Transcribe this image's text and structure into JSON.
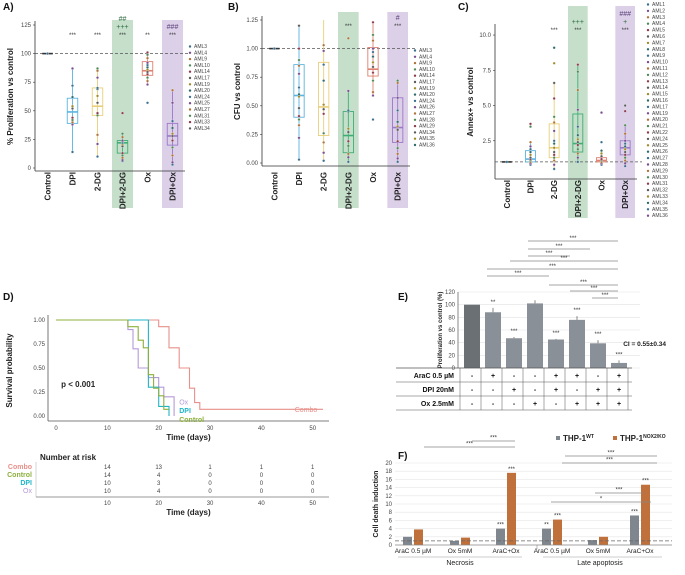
{
  "colors": {
    "green_band": "#c6dfcb",
    "purple_band": "#dcd0e8",
    "dpi": "#5ab4e0",
    "dg": "#e8cf7a",
    "dpi2dg": "#3fae74",
    "ox": "#e08070",
    "dpiox": "#9b78c8",
    "control": "#333333",
    "combo": "#e8908a",
    "km_control": "#8cb03c",
    "km_dpi": "#1fb5c8",
    "km_ox": "#b59ad8",
    "bar_dark": "#6b7075",
    "bar_gray": "#8a9097",
    "wt": "#7f868d",
    "ko": "#c0703a"
  },
  "chart_data": [
    {
      "id": "A",
      "panel_label": "A)",
      "type": "box",
      "ylabel": "% Proliferation vs control",
      "ylim": [
        0,
        125
      ],
      "yticks": [
        0,
        25,
        50,
        75,
        100,
        125
      ],
      "reference_line": 100,
      "categories": [
        "Control",
        "DPI",
        "2-DG",
        "DPI+2-DG",
        "Ox",
        "DPI+Ox"
      ],
      "highlight": {
        "DPI+2-DG": "green",
        "DPI+Ox": "purple"
      },
      "boxes": [
        {
          "q1": 100,
          "median": 100,
          "q3": 100,
          "min": 100,
          "max": 100
        },
        {
          "q1": 39,
          "median": 49,
          "q3": 61,
          "min": 14,
          "max": 87
        },
        {
          "q1": 46,
          "median": 54,
          "q3": 70,
          "min": 10,
          "max": 87
        },
        {
          "q1": 13,
          "median": 22,
          "q3": 24,
          "min": 6,
          "max": 30
        },
        {
          "q1": 81,
          "median": 85,
          "q3": 93,
          "min": 73,
          "max": 101
        },
        {
          "q1": 20,
          "median": 28,
          "q3": 39,
          "min": 3,
          "max": 68
        }
      ],
      "points": [
        [
          100
        ],
        [
          14,
          38,
          40,
          42,
          44,
          52,
          54,
          62,
          72,
          87
        ],
        [
          10,
          21,
          29,
          46,
          48,
          57,
          63,
          69,
          70,
          79,
          85,
          87
        ],
        [
          6,
          7,
          9,
          11,
          13,
          19,
          21,
          22,
          23,
          24,
          27,
          30,
          48
        ],
        [
          57,
          73,
          76,
          79,
          82,
          84,
          86,
          88,
          90,
          92,
          96,
          99,
          101
        ],
        [
          3,
          5,
          11,
          18,
          24,
          28,
          30,
          35,
          41,
          57,
          68
        ]
      ],
      "significance": [
        {
          "category": "DPI",
          "marks": [
            "***"
          ]
        },
        {
          "category": "2-DG",
          "marks": [
            "***"
          ]
        },
        {
          "category": "DPI+2-DG",
          "marks": [
            "##",
            "+++",
            "***"
          ]
        },
        {
          "category": "Ox",
          "marks": [
            "**"
          ]
        },
        {
          "category": "DPI+Ox",
          "marks": [
            "###",
            "***"
          ]
        }
      ],
      "legend": [
        "AML3",
        "AML4",
        "AML9",
        "AML10",
        "AML14",
        "AML17",
        "AML19",
        "AML20",
        "AML24",
        "AML25",
        "AML27",
        "AML31",
        "AML33",
        "AML34"
      ]
    },
    {
      "id": "B",
      "panel_label": "B)",
      "type": "box",
      "ylabel": "CFU vs control",
      "ylim": [
        0,
        1.25
      ],
      "yticks": [
        "0.00",
        "0.25",
        "0.50",
        "0.75",
        "1.00",
        "1.25"
      ],
      "reference_line": 1.0,
      "categories": [
        "Control",
        "DPI",
        "2-DG",
        "DPI+2-DG",
        "Ox",
        "DPI+Ox"
      ],
      "highlight": {
        "DPI+2-DG": "green",
        "DPI+Ox": "purple"
      },
      "boxes": [
        {
          "q1": 1.0,
          "median": 1.0,
          "q3": 1.0,
          "min": 1.0,
          "max": 1.0
        },
        {
          "q1": 0.4,
          "median": 0.59,
          "q3": 0.86,
          "min": 0.03,
          "max": 1.2
        },
        {
          "q1": 0.24,
          "median": 0.49,
          "q3": 0.88,
          "min": 0.02,
          "max": 1.25
        },
        {
          "q1": 0.09,
          "median": 0.24,
          "q3": 0.45,
          "min": 0.01,
          "max": 0.63
        },
        {
          "q1": 0.76,
          "median": 0.82,
          "q3": 1.01,
          "min": 0.59,
          "max": 1.23
        },
        {
          "q1": 0.18,
          "median": 0.31,
          "q3": 0.57,
          "min": 0.01,
          "max": 0.72
        }
      ],
      "points": [
        [
          1.0
        ],
        [
          0.03,
          0.22,
          0.33,
          0.38,
          0.41,
          0.48,
          0.58,
          0.6,
          0.66,
          0.78,
          0.85,
          0.9,
          1.0,
          1.2
        ],
        [
          0.02,
          0.09,
          0.18,
          0.26,
          0.43,
          0.47,
          0.51,
          0.72,
          0.86,
          0.98,
          1.03
        ],
        [
          0.01,
          0.05,
          0.08,
          0.15,
          0.19,
          0.27,
          0.3,
          0.45,
          0.46,
          0.63,
          1.09
        ],
        [
          0.38,
          0.59,
          0.62,
          0.72,
          0.79,
          0.84,
          0.88,
          0.93,
          0.97,
          1.0,
          1.07,
          1.12,
          1.23
        ],
        [
          0.01,
          0.04,
          0.08,
          0.13,
          0.19,
          0.29,
          0.32,
          0.36,
          0.46,
          0.57,
          0.7,
          0.72
        ]
      ],
      "significance": [
        {
          "category": "DPI+2-DG",
          "marks": [
            "***"
          ]
        },
        {
          "category": "DPI+Ox",
          "marks": [
            "#",
            "***"
          ]
        }
      ],
      "legend": [
        "AML3",
        "AML4",
        "AML9",
        "AML10",
        "AML14",
        "AML17",
        "AML19",
        "AML20",
        "AML24",
        "AML26",
        "AML27",
        "AML28",
        "AML29",
        "AML34",
        "AML35",
        "AML36"
      ]
    },
    {
      "id": "C",
      "panel_label": "C)",
      "type": "box",
      "ylabel": "Annex+ vs control",
      "ylim": [
        0,
        10.5
      ],
      "yticks": [
        "2.5",
        "5.0",
        "7.5",
        "10.0"
      ],
      "reference_line": 1.0,
      "categories": [
        "Control",
        "DPI",
        "2-DG",
        "DPI+2-DG",
        "Ox",
        "DPI+Ox"
      ],
      "highlight": {
        "DPI+2-DG": "green",
        "DPI+Ox": "purple"
      },
      "boxes": [
        {
          "q1": 1.0,
          "median": 1.0,
          "q3": 1.0,
          "min": 1.0,
          "max": 1.0
        },
        {
          "q1": 1.0,
          "median": 1.2,
          "q3": 1.8,
          "min": 0.8,
          "max": 2.4
        },
        {
          "q1": 1.3,
          "median": 2.0,
          "q3": 3.7,
          "min": 0.5,
          "max": 6.6
        },
        {
          "q1": 1.7,
          "median": 2.3,
          "q3": 4.4,
          "min": 1.0,
          "max": 7.9
        },
        {
          "q1": 1.0,
          "median": 1.1,
          "q3": 1.3,
          "min": 0.8,
          "max": 1.9
        },
        {
          "q1": 1.5,
          "median": 2.0,
          "q3": 2.5,
          "min": 0.7,
          "max": 3.6
        }
      ],
      "points": [
        [
          1.0
        ],
        [
          0.8,
          0.9,
          1.0,
          1.1,
          1.2,
          1.3,
          1.5,
          1.7,
          1.9,
          2.1,
          2.4,
          3.5,
          3.7
        ],
        [
          0.5,
          0.8,
          1.1,
          1.3,
          1.5,
          1.7,
          2.0,
          2.3,
          2.5,
          3.2,
          3.8,
          4.2,
          5.5,
          6.6,
          8.0,
          9.1
        ],
        [
          1.0,
          1.3,
          1.6,
          1.9,
          2.2,
          2.4,
          2.6,
          2.9,
          3.5,
          4.7,
          6.1,
          7.4,
          7.9
        ],
        [
          0.8,
          0.9,
          1.0,
          1.1,
          1.2,
          1.4,
          1.6,
          1.8,
          2.4,
          4.5
        ],
        [
          0.7,
          0.9,
          1.1,
          1.3,
          1.5,
          1.7,
          1.9,
          2.1,
          2.3,
          2.5,
          3.0,
          3.6,
          4.6,
          5.0
        ]
      ],
      "significance": [
        {
          "category": "2-DG",
          "marks": [
            "***"
          ]
        },
        {
          "category": "DPI+2-DG",
          "marks": [
            "+++",
            "***"
          ]
        },
        {
          "category": "DPI+Ox",
          "marks": [
            "###",
            "+",
            "***"
          ]
        }
      ],
      "legend": [
        "AML1",
        "AML2",
        "AML3",
        "AML4",
        "AML5",
        "AML6",
        "AML7",
        "AML8",
        "AML9",
        "AML10",
        "AML11",
        "AML12",
        "AML13",
        "AML14",
        "AML15",
        "AML16",
        "AML17",
        "AML19",
        "AML20",
        "AML21",
        "AML22",
        "AML24",
        "AML25",
        "AML26",
        "AML27",
        "AML28",
        "AML29",
        "AML30",
        "AML31",
        "AML32",
        "AML33",
        "AML34",
        "AML35",
        "AML36"
      ]
    },
    {
      "id": "D",
      "panel_label": "D)",
      "type": "line",
      "subtype": "kaplan-meier",
      "ylabel": "Survival probability",
      "xlabel": "Time (days)",
      "xlim": [
        0,
        52
      ],
      "ylim": [
        0,
        1
      ],
      "xticks": [
        0,
        10,
        20,
        30,
        40,
        50
      ],
      "yticks": [
        "0.00",
        "0.25",
        "0.50",
        "0.75",
        "1.00"
      ],
      "annotation": "p < 0.001",
      "series": [
        {
          "name": "Combo",
          "color_key": "combo",
          "steps": [
            [
              0,
              1.0
            ],
            [
              20,
              1.0
            ],
            [
              20,
              0.93
            ],
            [
              22,
              0.93
            ],
            [
              22,
              0.71
            ],
            [
              24,
              0.71
            ],
            [
              24,
              0.5
            ],
            [
              26,
              0.5
            ],
            [
              26,
              0.29
            ],
            [
              27,
              0.29
            ],
            [
              27,
              0.14
            ],
            [
              28,
              0.14
            ],
            [
              28,
              0.07
            ],
            [
              52,
              0.07
            ]
          ]
        },
        {
          "name": "Ox",
          "color_key": "km_ox",
          "steps": [
            [
              0,
              1.0
            ],
            [
              14,
              1.0
            ],
            [
              14,
              0.9
            ],
            [
              15,
              0.9
            ],
            [
              15,
              0.7
            ],
            [
              16,
              0.7
            ],
            [
              16,
              0.5
            ],
            [
              18,
              0.5
            ],
            [
              18,
              0.4
            ],
            [
              20,
              0.4
            ],
            [
              20,
              0.3
            ],
            [
              21,
              0.3
            ],
            [
              21,
              0.2
            ],
            [
              23,
              0.2
            ],
            [
              23,
              0.0
            ]
          ]
        },
        {
          "name": "DPI",
          "color_key": "km_dpi",
          "steps": [
            [
              0,
              1.0
            ],
            [
              18,
              1.0
            ],
            [
              18,
              0.3
            ],
            [
              20,
              0.3
            ],
            [
              20,
              0.1
            ],
            [
              22,
              0.1
            ],
            [
              22,
              0.0
            ]
          ]
        },
        {
          "name": "Control",
          "color_key": "km_control",
          "steps": [
            [
              0,
              1.0
            ],
            [
              14,
              1.0
            ],
            [
              14,
              0.93
            ],
            [
              16,
              0.93
            ],
            [
              16,
              0.79
            ],
            [
              17,
              0.79
            ],
            [
              17,
              0.71
            ],
            [
              18,
              0.71
            ],
            [
              18,
              0.43
            ],
            [
              19,
              0.43
            ],
            [
              19,
              0.29
            ],
            [
              20,
              0.29
            ],
            [
              20,
              0.21
            ],
            [
              21,
              0.21
            ],
            [
              21,
              0.07
            ],
            [
              22,
              0.07
            ]
          ]
        }
      ],
      "risk_table": {
        "title": "Number at risk",
        "xticks": [
          10,
          20,
          30,
          40,
          50
        ],
        "xlabel": "Time (days)",
        "rows": [
          {
            "name": "Combo",
            "values": [
              14,
              13,
              1,
              1,
              1
            ]
          },
          {
            "name": "Control",
            "values": [
              14,
              4,
              0,
              0,
              0
            ]
          },
          {
            "name": "DPI",
            "values": [
              10,
              3,
              0,
              0,
              0
            ]
          },
          {
            "name": "Ox",
            "values": [
              10,
              4,
              0,
              0,
              0
            ]
          }
        ]
      }
    },
    {
      "id": "E",
      "panel_label": "E)",
      "type": "bar",
      "ylabel": "Proliferation vs control (%)",
      "ylim": [
        0,
        120
      ],
      "yticks": [
        0,
        20,
        40,
        60,
        80,
        100,
        120
      ],
      "values": [
        100,
        88,
        47,
        102,
        45,
        76,
        39,
        8
      ],
      "errors": [
        0,
        7,
        2,
        5,
        1,
        6,
        5,
        4
      ],
      "bar_marks": [
        "",
        "**",
        "***",
        "",
        "***",
        "***",
        "***",
        "***"
      ],
      "annotation": "CI = 0.55±0.34",
      "conditions": [
        {
          "label": "AraC 0.5 µM",
          "values": [
            "-",
            "+",
            "-",
            "-",
            "+",
            "+",
            "-",
            "+"
          ]
        },
        {
          "label": "DPI 20nM",
          "values": [
            "-",
            "-",
            "+",
            "-",
            "+",
            "-",
            "+",
            "+"
          ]
        },
        {
          "label": "Ox 2.5mM",
          "values": [
            "-",
            "-",
            "-",
            "+",
            "-",
            "+",
            "+",
            "+"
          ]
        }
      ],
      "brackets": [
        {
          "from": 3,
          "to": 8,
          "mark": "***"
        },
        {
          "from": 3,
          "to": 6,
          "mark": "***"
        },
        {
          "from": 3,
          "to": 5,
          "mark": "***"
        },
        {
          "from": 2,
          "to": 8,
          "mark": "***"
        },
        {
          "from": 2,
          "to": 8,
          "mark": "***"
        },
        {
          "from": 2,
          "to": 5,
          "mark": "***"
        },
        {
          "from": 5,
          "to": 8,
          "mark": "***"
        },
        {
          "from": 6,
          "to": 8,
          "mark": "***"
        },
        {
          "from": 7,
          "to": 8,
          "mark": "***"
        }
      ]
    },
    {
      "id": "F",
      "panel_label": "F)",
      "type": "bar",
      "ylabel": "Cell death induction",
      "ylim": [
        0,
        20
      ],
      "yticks": [
        0,
        2,
        4,
        6,
        8,
        10,
        12,
        14,
        16,
        18,
        20
      ],
      "reference_line": 1,
      "categories": [
        "AraC  0.5 µM",
        "Ox 5mM",
        "ArаC+Ox",
        "AraC 0.5 µM",
        "Ox 5mM",
        "AraC+Ox"
      ],
      "groups": [
        "Necrosis",
        "Late apoptosis"
      ],
      "series": [
        {
          "name": "THP-1",
          "superscript": "WT",
          "color_key": "wt",
          "values": [
            2.0,
            1.0,
            4.0,
            4.0,
            1.2,
            7.2
          ]
        },
        {
          "name": "THP-1",
          "superscript": "NOX2/KO",
          "color_key": "ko",
          "values": [
            3.8,
            1.8,
            17.6,
            6.2,
            2.0,
            14.7
          ]
        }
      ],
      "bar_marks": [
        {
          "category": 2,
          "series": 0,
          "mark": "***"
        },
        {
          "category": 2,
          "series": 1,
          "mark": "***"
        },
        {
          "category": 3,
          "series": 0,
          "mark": "**"
        },
        {
          "category": 3,
          "series": 1,
          "mark": "***"
        },
        {
          "category": 5,
          "series": 0,
          "mark": "***"
        },
        {
          "category": 5,
          "series": 1,
          "mark": "***"
        }
      ],
      "brackets_text": [
        "***",
        "***",
        "***",
        "***",
        "*",
        "***"
      ]
    }
  ]
}
